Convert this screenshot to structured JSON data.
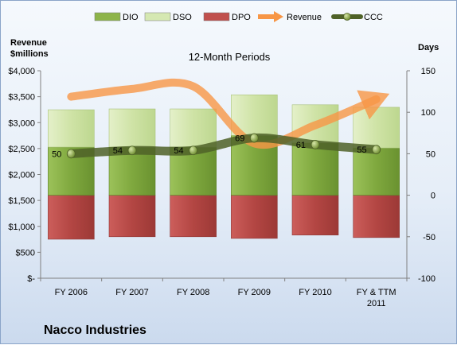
{
  "chart_data": {
    "type": "bar",
    "title": "12-Month Periods",
    "company": "Nacco Industries",
    "ylabel_left": [
      "Revenue",
      "$millions"
    ],
    "ylabel_right": "Days",
    "categories": [
      [
        "FY 2006"
      ],
      [
        "FY 2007"
      ],
      [
        "FY 2008"
      ],
      [
        "FY 2009"
      ],
      [
        "FY 2010"
      ],
      [
        "FY & TTM",
        "2011"
      ]
    ],
    "ylim_left": [
      0,
      4000
    ],
    "ylim_right": [
      -100,
      150
    ],
    "left_ticks": [
      {
        "v": 0,
        "t": "$-"
      },
      {
        "v": 500,
        "t": "$500"
      },
      {
        "v": 1000,
        "t": "$1,000"
      },
      {
        "v": 1500,
        "t": "$1,500"
      },
      {
        "v": 2000,
        "t": "$2,000"
      },
      {
        "v": 2500,
        "t": "$2,500"
      },
      {
        "v": 3000,
        "t": "$3,000"
      },
      {
        "v": 3500,
        "t": "$3,500"
      },
      {
        "v": 4000,
        "t": "$4,000"
      }
    ],
    "right_ticks": [
      {
        "v": -100,
        "t": "-100"
      },
      {
        "v": -50,
        "t": "-50"
      },
      {
        "v": 0,
        "t": "0"
      },
      {
        "v": 50,
        "t": "50"
      },
      {
        "v": 100,
        "t": "100"
      },
      {
        "v": 150,
        "t": "150"
      }
    ],
    "legend": [
      {
        "name": "DIO",
        "kind": "box",
        "color": "#8db44a"
      },
      {
        "name": "DSO",
        "kind": "box",
        "color": "#d5e8b2"
      },
      {
        "name": "DPO",
        "kind": "box",
        "color": "#c0504d"
      },
      {
        "name": "Revenue",
        "kind": "arrow",
        "color": "#f79646"
      },
      {
        "name": "CCC",
        "kind": "line",
        "color": "#4f6228"
      }
    ],
    "series": [
      {
        "name": "DIO",
        "axis": "right",
        "values": [
          58,
          58,
          58,
          72,
          63,
          57
        ]
      },
      {
        "name": "DSO",
        "axis": "right",
        "values": [
          45,
          46,
          46,
          49,
          46,
          49
        ]
      },
      {
        "name": "DPO",
        "axis": "right",
        "values": [
          -53,
          -50,
          -50,
          -52,
          -48,
          -51
        ]
      },
      {
        "name": "Revenue",
        "axis": "left",
        "values": [
          3500,
          3650,
          3700,
          2600,
          2950,
          3450
        ]
      },
      {
        "name": "CCC",
        "axis": "right",
        "values": [
          50,
          54,
          54,
          69,
          61,
          55
        ]
      }
    ],
    "ccc_labels": [
      "50",
      "54",
      "54",
      "69",
      "61",
      "55"
    ],
    "grid": false,
    "legend_position": "top"
  },
  "colors": {
    "dio": "#8db44a",
    "dso": "#d5e8b2",
    "dpo": "#c0504d",
    "revenue": "#f79646",
    "ccc": "#4f6228"
  }
}
